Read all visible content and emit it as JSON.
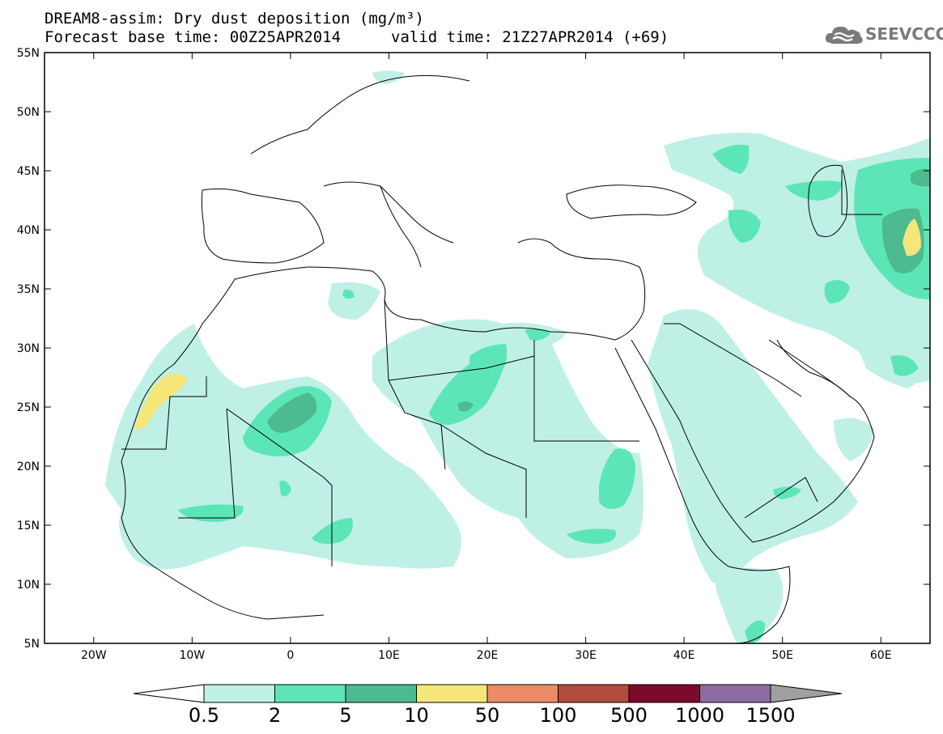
{
  "title": {
    "line1": "DREAM8-assim: Dry dust deposition (mg/m³)",
    "line2": "Forecast base time: 00Z25APR2014",
    "valid": "valid time: 21Z27APR2014 (+69)"
  },
  "logo": {
    "text": "SEEVCCC",
    "icon": "cloud-logo-icon"
  },
  "map": {
    "lon_range": [
      -25,
      65
    ],
    "lat_range": [
      5,
      55
    ],
    "lon_ticks": [
      {
        "value": -20,
        "label": "20W"
      },
      {
        "value": -10,
        "label": "10W"
      },
      {
        "value": 0,
        "label": "0"
      },
      {
        "value": 10,
        "label": "10E"
      },
      {
        "value": 20,
        "label": "20E"
      },
      {
        "value": 30,
        "label": "30E"
      },
      {
        "value": 40,
        "label": "40E"
      },
      {
        "value": 50,
        "label": "50E"
      },
      {
        "value": 60,
        "label": "60E"
      }
    ],
    "lat_ticks": [
      {
        "value": 55,
        "label": "55N"
      },
      {
        "value": 50,
        "label": "50N"
      },
      {
        "value": 45,
        "label": "45N"
      },
      {
        "value": 40,
        "label": "40N"
      },
      {
        "value": 35,
        "label": "35N"
      },
      {
        "value": 30,
        "label": "30N"
      },
      {
        "value": 25,
        "label": "25N"
      },
      {
        "value": 20,
        "label": "20N"
      },
      {
        "value": 15,
        "label": "15N"
      },
      {
        "value": 10,
        "label": "10N"
      },
      {
        "value": 5,
        "label": "5N"
      }
    ]
  },
  "colorbar": {
    "levels": [
      "0.5",
      "2",
      "5",
      "10",
      "50",
      "100",
      "500",
      "1000",
      "1500"
    ],
    "colors": [
      "#bff0e6",
      "#5ce6b8",
      "#4dbb8f",
      "#f5e67a",
      "#ec8c66",
      "#b04d3e",
      "#7d0a2a",
      "#8c6aa3"
    ],
    "under_color": "#ffffff",
    "over_color": "#a0a0a0"
  }
}
